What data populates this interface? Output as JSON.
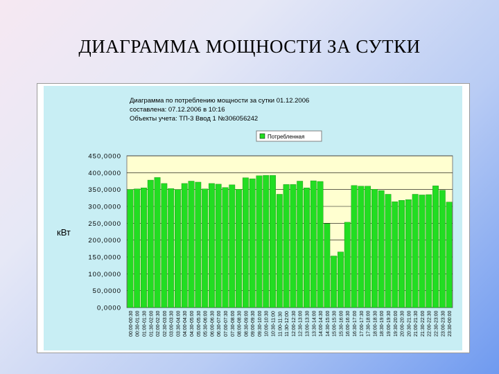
{
  "slide": {
    "title": "ДИАГРАММА МОЩНОСТИ ЗА СУТКИ"
  },
  "chart_data": {
    "type": "bar",
    "title_lines": [
      "Диаграмма по потреблению мощности за сутки 01.12.2006",
      "составлена: 07.12.2006 в 10:16",
      "Объекты учета: ТП-3 Ввод 1   №306056242"
    ],
    "ylabel": "кВт",
    "ylim": [
      0,
      450
    ],
    "yticks": [
      0,
      50,
      100,
      150,
      200,
      250,
      300,
      350,
      400,
      450
    ],
    "ytick_labels": [
      "0,0000",
      "50,0000",
      "100,0000",
      "150,0000",
      "200,0000",
      "250,0000",
      "300,0000",
      "350,0000",
      "400,0000",
      "450,0000"
    ],
    "grid": "horizontal",
    "legend_position": "top",
    "series": [
      {
        "name": "Потребленная",
        "color": "#22dd22",
        "values": [
          350,
          352,
          355,
          378,
          386,
          368,
          353,
          350,
          368,
          375,
          372,
          352,
          368,
          366,
          356,
          364,
          351,
          385,
          382,
          391,
          392,
          392,
          336,
          365,
          365,
          375,
          355,
          376,
          374,
          249,
          153,
          165,
          253,
          362,
          360,
          360,
          351,
          347,
          336,
          314,
          318,
          320,
          336,
          334,
          335,
          361,
          348,
          313
        ]
      }
    ]
  }
}
